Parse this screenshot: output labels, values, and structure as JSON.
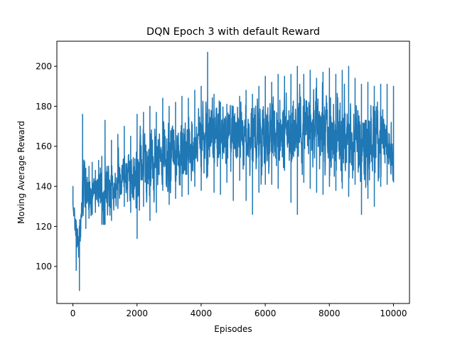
{
  "chart_data": {
    "type": "line",
    "title": "DQN Epoch 3 with default Reward",
    "xlabel": "Episodes",
    "ylabel": "Moving Average Reward",
    "xlim": [
      -500,
      10500
    ],
    "ylim": [
      81.5,
      212.5
    ],
    "x_ticks": [
      0,
      2000,
      4000,
      6000,
      8000,
      10000
    ],
    "x_tick_labels": [
      "0",
      "2000",
      "4000",
      "6000",
      "8000",
      "10000"
    ],
    "y_ticks": [
      100,
      120,
      140,
      160,
      180,
      200
    ],
    "y_tick_labels": [
      "100",
      "120",
      "140",
      "160",
      "180",
      "200"
    ],
    "grid": false,
    "legend": "none",
    "series": [
      {
        "color": "#1f77b4",
        "x": [
          0,
          100,
          200,
          300,
          400,
          500,
          600,
          700,
          800,
          900,
          1000,
          1200,
          1400,
          1600,
          1800,
          2000,
          2200,
          2400,
          2600,
          2800,
          3000,
          3200,
          3400,
          3600,
          3800,
          4000,
          4200,
          4400,
          4600,
          4800,
          5000,
          5200,
          5400,
          5600,
          5800,
          6000,
          6200,
          6400,
          6600,
          6800,
          7000,
          7200,
          7400,
          7600,
          7800,
          8000,
          8200,
          8400,
          8600,
          8800,
          9000,
          9200,
          9400,
          9600,
          9800,
          10000
        ],
        "values": [
          131,
          116,
          112,
          136,
          143,
          132,
          136,
          138,
          140,
          137,
          140,
          141,
          143,
          147,
          146,
          146,
          149,
          152,
          151,
          154,
          154,
          156,
          158,
          160,
          161,
          164,
          166,
          166,
          165,
          164,
          163,
          165,
          164,
          165,
          166,
          167,
          168,
          167,
          168,
          168,
          170,
          171,
          168,
          167,
          166,
          166,
          165,
          164,
          163,
          162,
          160,
          161,
          162,
          164,
          163,
          157
        ],
        "range_max": [
          140,
          123,
          120,
          176,
          149,
          150,
          152,
          148,
          153,
          155,
          173,
          163,
          166,
          170,
          165,
          176,
          177,
          180,
          177,
          184,
          180,
          182,
          185,
          184,
          188,
          190,
          207,
          186,
          182,
          181,
          180,
          185,
          188,
          186,
          190,
          195,
          192,
          196,
          195,
          196,
          200,
          196,
          198,
          194,
          197,
          199,
          196,
          198,
          200,
          194,
          191,
          192,
          190,
          191,
          191,
          190
        ],
        "range_min": [
          131,
          98,
          88,
          127,
          119,
          124,
          126,
          127,
          130,
          121,
          121,
          123,
          129,
          130,
          127,
          114,
          130,
          123,
          127,
          138,
          131,
          134,
          135,
          136,
          140,
          138,
          145,
          137,
          136,
          142,
          133,
          143,
          133,
          126,
          137,
          141,
          141,
          139,
          148,
          132,
          126,
          142,
          139,
          137,
          136,
          140,
          138,
          139,
          135,
          141,
          126,
          134,
          130,
          140,
          141,
          142
        ]
      }
    ]
  }
}
